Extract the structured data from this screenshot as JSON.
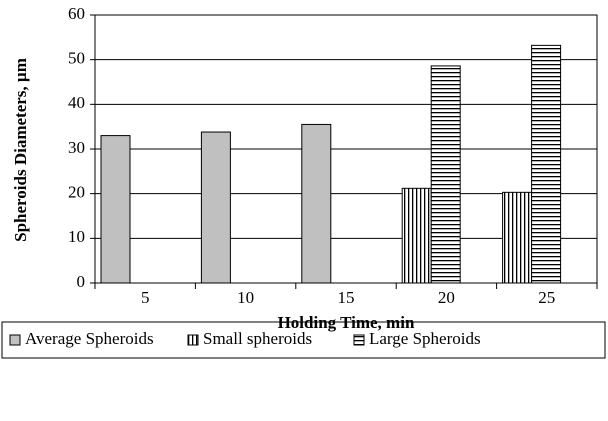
{
  "chart_data": {
    "type": "bar",
    "xlabel": "Holding Time, min",
    "ylabel": "Spheroids Diameters, µm",
    "categories": [
      "5",
      "10",
      "15",
      "20",
      "25"
    ],
    "series": [
      {
        "name": "Average Spheroids",
        "color": "#c0c0c0",
        "pattern": "solid",
        "values": [
          33,
          33.8,
          35.5,
          null,
          null
        ]
      },
      {
        "name": "Small spheroids",
        "color": "#000000",
        "pattern": "vertical",
        "values": [
          null,
          null,
          null,
          21.2,
          20.3
        ]
      },
      {
        "name": "Large Spheroids",
        "color": "#000000",
        "pattern": "horizontal",
        "values": [
          null,
          null,
          null,
          48.6,
          53.2
        ]
      }
    ],
    "ylim": [
      0,
      60
    ],
    "yticks": [
      0,
      10,
      20,
      30,
      40,
      50,
      60
    ],
    "grid": true,
    "legend": "bottom"
  }
}
